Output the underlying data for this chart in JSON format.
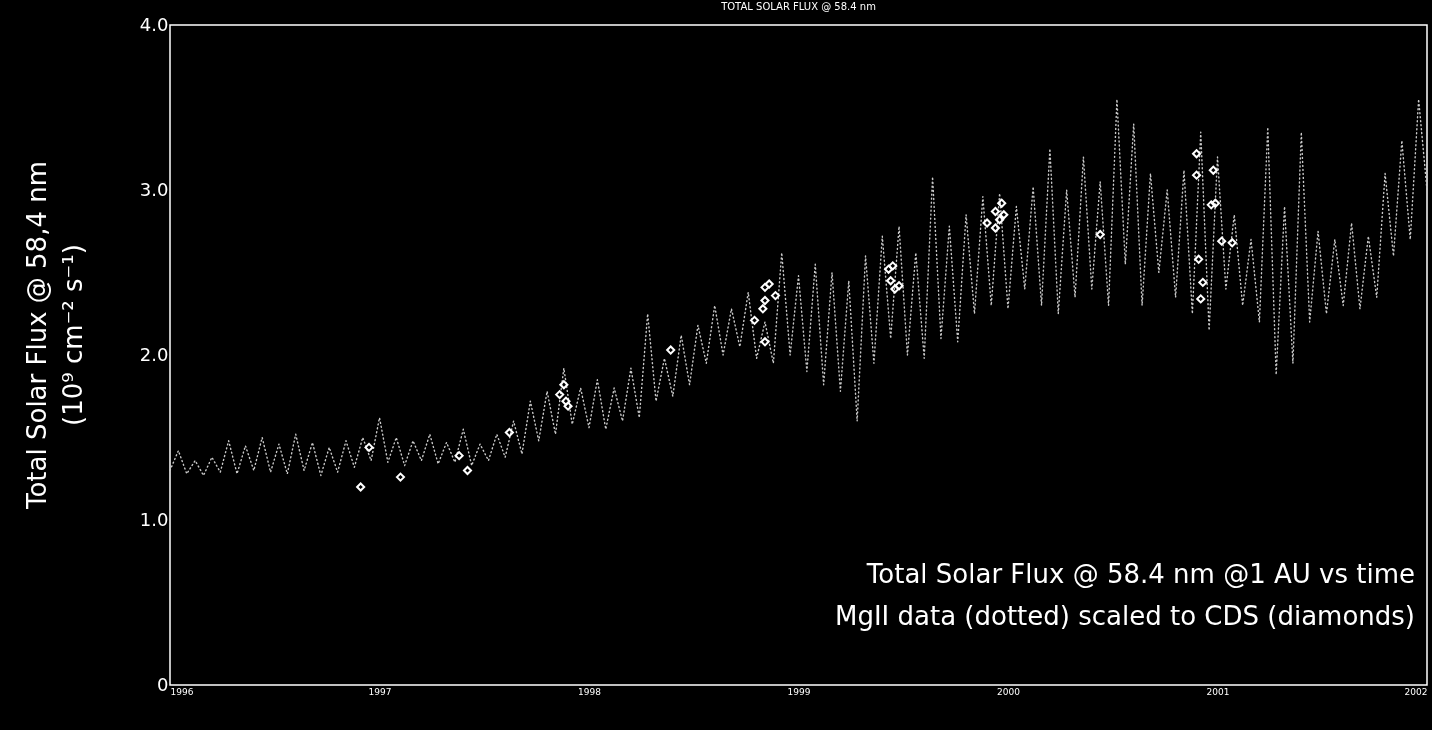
{
  "chart_data": {
    "type": "line",
    "title": "TOTAL SOLAR FLUX @ 58.4 nm",
    "ylabel": "Total Solar Flux @ 58,4 nm\n(10⁹ cm⁻² s⁻¹)",
    "xlim": [
      1996,
      2002
    ],
    "xticks": [
      1996,
      1997,
      1998,
      1999,
      2000,
      2001,
      2002
    ],
    "ylim": [
      0,
      4
    ],
    "yticks": [
      0,
      {
        "value": 1,
        "label": "1.0"
      },
      {
        "value": 2,
        "label": "2.0"
      },
      {
        "value": 3,
        "label": "3.0"
      },
      {
        "value": 4,
        "label": "4.0"
      }
    ],
    "grid": false,
    "annotations": [
      "Total Solar Flux @ 58.4 nm @1 AU vs time",
      "MgII data (dotted) scaled to CDS (diamonds)"
    ],
    "series": [
      {
        "line_style": "dotted",
        "marker": "none",
        "color": "#c8c8c8",
        "x": [
          1996.0,
          1996.04,
          1996.08,
          1996.12,
          1996.16,
          1996.2,
          1996.24,
          1996.28,
          1996.32,
          1996.36,
          1996.4,
          1996.44,
          1996.48,
          1996.52,
          1996.56,
          1996.6,
          1996.64,
          1996.68,
          1996.72,
          1996.76,
          1996.8,
          1996.84,
          1996.88,
          1996.92,
          1996.96,
          1997.0,
          1997.04,
          1997.08,
          1997.12,
          1997.16,
          1997.2,
          1997.24,
          1997.28,
          1997.32,
          1997.36,
          1997.4,
          1997.44,
          1997.48,
          1997.52,
          1997.56,
          1997.6,
          1997.64,
          1997.68,
          1997.72,
          1997.76,
          1997.8,
          1997.84,
          1997.88,
          1997.92,
          1997.96,
          1998.0,
          1998.04,
          1998.08,
          1998.12,
          1998.16,
          1998.2,
          1998.24,
          1998.28,
          1998.32,
          1998.36,
          1998.4,
          1998.44,
          1998.48,
          1998.52,
          1998.56,
          1998.6,
          1998.64,
          1998.68,
          1998.72,
          1998.76,
          1998.8,
          1998.84,
          1998.88,
          1998.92,
          1998.96,
          1999.0,
          1999.04,
          1999.08,
          1999.12,
          1999.16,
          1999.2,
          1999.24,
          1999.28,
          1999.32,
          1999.36,
          1999.4,
          1999.44,
          1999.48,
          1999.52,
          1999.56,
          1999.6,
          1999.64,
          1999.68,
          1999.72,
          1999.76,
          1999.8,
          1999.84,
          1999.88,
          1999.92,
          1999.96,
          2000.0,
          2000.04,
          2000.08,
          2000.12,
          2000.16,
          2000.2,
          2000.24,
          2000.28,
          2000.32,
          2000.36,
          2000.4,
          2000.44,
          2000.48,
          2000.52,
          2000.56,
          2000.6,
          2000.64,
          2000.68,
          2000.72,
          2000.76,
          2000.8,
          2000.84,
          2000.88,
          2000.92,
          2000.96,
          2001.0,
          2001.04,
          2001.08,
          2001.12,
          2001.16,
          2001.2,
          2001.24,
          2001.28,
          2001.32,
          2001.36,
          2001.4,
          2001.44,
          2001.48,
          2001.52,
          2001.56,
          2001.6,
          2001.64,
          2001.68,
          2001.72,
          2001.76,
          2001.8,
          2001.84,
          2001.88,
          2001.92,
          2001.96,
          2002.0
        ],
        "values": [
          1.3,
          1.42,
          1.28,
          1.36,
          1.27,
          1.38,
          1.29,
          1.48,
          1.28,
          1.45,
          1.3,
          1.5,
          1.29,
          1.46,
          1.28,
          1.52,
          1.3,
          1.47,
          1.27,
          1.44,
          1.29,
          1.48,
          1.32,
          1.5,
          1.36,
          1.62,
          1.35,
          1.5,
          1.33,
          1.48,
          1.36,
          1.52,
          1.34,
          1.47,
          1.35,
          1.55,
          1.33,
          1.46,
          1.36,
          1.52,
          1.38,
          1.6,
          1.4,
          1.72,
          1.48,
          1.78,
          1.52,
          1.92,
          1.58,
          1.8,
          1.56,
          1.85,
          1.55,
          1.8,
          1.6,
          1.92,
          1.62,
          2.25,
          1.72,
          1.98,
          1.75,
          2.12,
          1.82,
          2.18,
          1.95,
          2.3,
          2.0,
          2.28,
          2.05,
          2.38,
          1.98,
          2.2,
          1.95,
          2.62,
          2.0,
          2.48,
          1.9,
          2.55,
          1.82,
          2.5,
          1.78,
          2.45,
          1.6,
          2.6,
          1.95,
          2.72,
          2.1,
          2.78,
          2.0,
          2.62,
          1.98,
          3.08,
          2.1,
          2.78,
          2.08,
          2.85,
          2.25,
          2.96,
          2.3,
          2.98,
          2.28,
          2.9,
          2.4,
          3.02,
          2.3,
          3.25,
          2.25,
          3.0,
          2.35,
          3.2,
          2.4,
          3.05,
          2.3,
          3.55,
          2.55,
          3.4,
          2.3,
          3.1,
          2.5,
          3.0,
          2.35,
          3.12,
          2.25,
          3.35,
          2.15,
          3.2,
          2.4,
          2.85,
          2.3,
          2.7,
          2.2,
          3.38,
          1.88,
          2.9,
          1.95,
          3.35,
          2.2,
          2.75,
          2.25,
          2.7,
          2.3,
          2.8,
          2.28,
          2.72,
          2.35,
          3.1,
          2.6,
          3.3,
          2.7,
          3.55,
          3.0
        ]
      },
      {
        "type": "scatter",
        "marker": "diamond",
        "color": "#ffffff",
        "x": [
          1996.91,
          1996.95,
          1997.1,
          1997.38,
          1997.42,
          1997.62,
          1997.88,
          1997.86,
          1997.89,
          1997.9,
          1998.39,
          1998.79,
          1998.83,
          1998.84,
          1998.84,
          1998.86,
          1998.89,
          1998.84,
          1999.43,
          1999.45,
          1999.44,
          1999.46,
          1999.48,
          1999.9,
          1999.94,
          1999.97,
          1999.98,
          1999.96,
          1999.94,
          2000.44,
          2000.9,
          2000.9,
          2000.98,
          2000.97,
          2000.99,
          2001.02,
          2001.07,
          2000.91,
          2000.93,
          2000.92
        ],
        "values": [
          1.2,
          1.44,
          1.26,
          1.39,
          1.3,
          1.53,
          1.82,
          1.76,
          1.72,
          1.69,
          2.03,
          2.21,
          2.28,
          2.33,
          2.41,
          2.43,
          2.36,
          2.08,
          2.52,
          2.54,
          2.45,
          2.4,
          2.42,
          2.8,
          2.87,
          2.92,
          2.85,
          2.82,
          2.77,
          2.73,
          3.22,
          3.09,
          3.12,
          2.91,
          2.92,
          2.69,
          2.68,
          2.58,
          2.44,
          2.34
        ]
      }
    ]
  }
}
